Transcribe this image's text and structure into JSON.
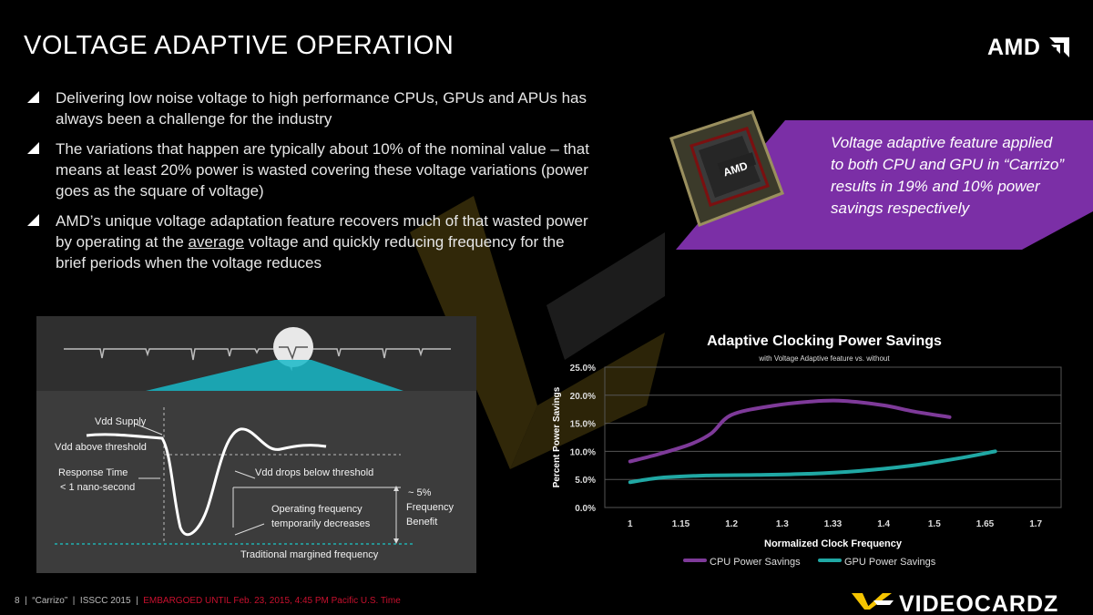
{
  "title": "VOLTAGE ADAPTIVE OPERATION",
  "logo_text": "AMD",
  "bullets": [
    {
      "text": "Delivering low noise voltage to high performance CPUs, GPUs and APUs has always been a challenge for the industry"
    },
    {
      "text": "The variations that happen are typically about 10% of the nominal value – that means at least 20% power is wasted covering these voltage variations (power goes as the square of voltage)"
    },
    {
      "pre": "AMD’s unique voltage adaptation feature recovers much of that wasted power by operating at the ",
      "emph": "average",
      "post": " voltage and quickly reducing frequency for the brief periods when the voltage reduces"
    }
  ],
  "callout": {
    "text": "Voltage adaptive feature applied to both CPU and GPU in “Carrizo” results in 19% and 10% power savings respectively",
    "chip_text": "AMD",
    "color": "#7b2fa6"
  },
  "diagram": {
    "labels": {
      "vdd_supply": "Vdd Supply",
      "vdd_above": "Vdd above threshold",
      "response_time_1": "Response Time",
      "response_time_2": "< 1 nano-second",
      "vdd_drops": "Vdd drops below threshold",
      "op_freq_1": "Operating frequency",
      "op_freq_2": "temporarily decreases",
      "benefit_1": "~ 5%",
      "benefit_2": "Frequency",
      "benefit_3": "Benefit",
      "traditional": "Traditional margined frequency"
    }
  },
  "chart_data": {
    "type": "line",
    "title": "Adaptive Clocking Power Savings",
    "subtitle": "with Voltage Adaptive feature vs. without",
    "xlabel": "Normalized Clock Frequency",
    "ylabel": "Percent Power Savings",
    "categories": [
      "1",
      "1.15",
      "1.2",
      "1.3",
      "1.33",
      "1.4",
      "1.5",
      "1.65",
      "1.7"
    ],
    "yticks": [
      "0.0%",
      "5.0%",
      "10.0%",
      "15.0%",
      "20.0%",
      "25.0%"
    ],
    "ylim": [
      0,
      25
    ],
    "grid": true,
    "legend": "bottom",
    "series": [
      {
        "name": "CPU Power Savings",
        "color": "#7e3a99",
        "x": [
          0,
          0.6,
          1.2,
          1.6,
          2,
          2.8,
          3.6,
          4.2,
          5,
          5.6,
          6.3
        ],
        "values": [
          8.2,
          9.6,
          11.3,
          13.2,
          16.5,
          18.1,
          18.9,
          19.0,
          18.2,
          17.1,
          16.1
        ]
      },
      {
        "name": "GPU Power Savings",
        "color": "#20a8a4",
        "x": [
          0,
          0.6,
          1.5,
          2.5,
          3.5,
          4.5,
          5.5,
          6.5,
          7.2
        ],
        "values": [
          4.5,
          5.3,
          5.7,
          5.8,
          6.0,
          6.5,
          7.4,
          8.8,
          10.0
        ]
      }
    ]
  },
  "footer": {
    "page": "8",
    "sep": "|",
    "codename": "“Carrizo”",
    "conf": "ISSCC 2015",
    "embargo": "EMBARGOED UNTIL Feb. 23, 2015, 4:45 PM Pacific U.S. Time"
  },
  "brand": "VIDEOCARDZ"
}
